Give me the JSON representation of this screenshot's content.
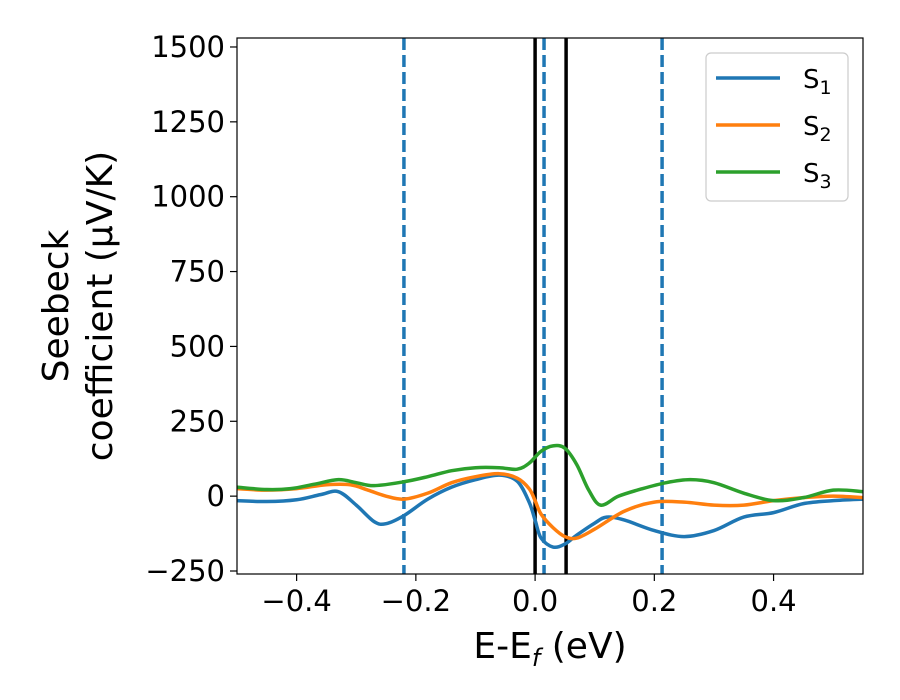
{
  "chart_data": {
    "type": "line",
    "xlabel": {
      "main": "E-E",
      "sub": "f",
      "tail": " (eV)"
    },
    "ylabel": {
      "line1": "Seebeck",
      "line2": "coefficient  (μV/K)"
    },
    "xlim": [
      -0.5,
      0.55
    ],
    "ylim": [
      -260,
      1530
    ],
    "xticks": [
      -0.4,
      -0.2,
      0.0,
      0.2,
      0.4
    ],
    "xtick_labels": [
      "−0.4",
      "−0.2",
      "0.0",
      "0.2",
      "0.4"
    ],
    "yticks": [
      -250,
      0,
      250,
      500,
      750,
      1000,
      1250,
      1500
    ],
    "ytick_labels": [
      "−250",
      "0",
      "250",
      "500",
      "750",
      "1000",
      "1250",
      "1500"
    ],
    "grid": false,
    "legend_position": "top-right",
    "vlines": [
      {
        "x": -0.22,
        "style": "dashed",
        "color": "#1f77b4"
      },
      {
        "x": 0.015,
        "style": "dashed",
        "color": "#1f77b4"
      },
      {
        "x": 0.213,
        "style": "dashed",
        "color": "#1f77b4"
      },
      {
        "x": 0.0,
        "style": "solid",
        "color": "#000000"
      },
      {
        "x": 0.052,
        "style": "solid",
        "color": "#000000"
      }
    ],
    "series": [
      {
        "name": "S",
        "sub": "1",
        "color": "#1f77b4",
        "x": [
          -0.5,
          -0.45,
          -0.4,
          -0.36,
          -0.33,
          -0.3,
          -0.27,
          -0.25,
          -0.22,
          -0.18,
          -0.14,
          -0.1,
          -0.06,
          -0.03,
          -0.01,
          0.0,
          0.01,
          0.03,
          0.05,
          0.07,
          0.1,
          0.12,
          0.15,
          0.2,
          0.25,
          0.3,
          0.35,
          0.4,
          0.45,
          0.5,
          0.55
        ],
        "y": [
          -15,
          -18,
          -12,
          5,
          15,
          -30,
          -85,
          -92,
          -65,
          -10,
          30,
          55,
          70,
          50,
          -20,
          -80,
          -140,
          -170,
          -160,
          -130,
          -90,
          -70,
          -80,
          -115,
          -135,
          -115,
          -70,
          -55,
          -25,
          -15,
          -10
        ]
      },
      {
        "name": "S",
        "sub": "2",
        "color": "#ff7f0e",
        "x": [
          -0.5,
          -0.45,
          -0.4,
          -0.35,
          -0.31,
          -0.28,
          -0.25,
          -0.22,
          -0.18,
          -0.14,
          -0.1,
          -0.06,
          -0.03,
          -0.01,
          0.0,
          0.01,
          0.03,
          0.05,
          0.07,
          0.1,
          0.15,
          0.2,
          0.25,
          0.3,
          0.35,
          0.4,
          0.45,
          0.5,
          0.55
        ],
        "y": [
          25,
          20,
          25,
          38,
          38,
          20,
          0,
          -10,
          10,
          45,
          65,
          75,
          60,
          25,
          -15,
          -60,
          -105,
          -135,
          -140,
          -110,
          -50,
          -20,
          -20,
          -30,
          -30,
          -15,
          -5,
          0,
          -5
        ]
      },
      {
        "name": "S",
        "sub": "3",
        "color": "#2ca02c",
        "x": [
          -0.5,
          -0.45,
          -0.41,
          -0.37,
          -0.33,
          -0.3,
          -0.27,
          -0.22,
          -0.18,
          -0.14,
          -0.1,
          -0.06,
          -0.03,
          -0.01,
          0.01,
          0.03,
          0.05,
          0.07,
          0.09,
          0.11,
          0.14,
          0.18,
          0.22,
          0.26,
          0.3,
          0.35,
          0.4,
          0.45,
          0.5,
          0.55
        ],
        "y": [
          30,
          22,
          25,
          40,
          55,
          45,
          35,
          48,
          65,
          85,
          95,
          95,
          90,
          110,
          150,
          168,
          160,
          105,
          20,
          -30,
          0,
          25,
          45,
          55,
          45,
          10,
          -15,
          -5,
          20,
          15
        ]
      }
    ]
  }
}
